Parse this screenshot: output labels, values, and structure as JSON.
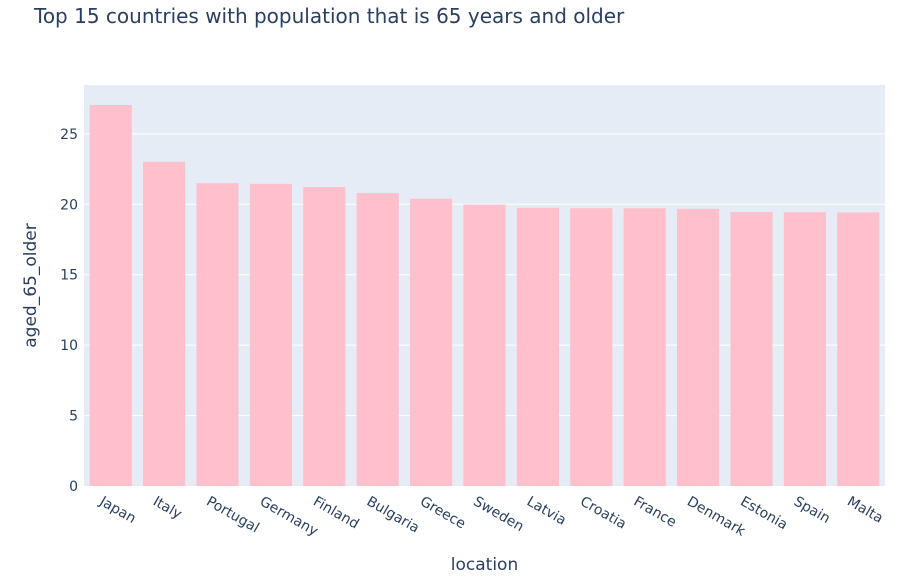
{
  "chart_data": {
    "type": "bar",
    "title": "Top 15 countries with population that is 65 years and older",
    "xlabel": "location",
    "ylabel": "aged_65_older",
    "categories": [
      "Japan",
      "Italy",
      "Portugal",
      "Germany",
      "Finland",
      "Bulgaria",
      "Greece",
      "Sweden",
      "Latvia",
      "Croatia",
      "France",
      "Denmark",
      "Estonia",
      "Spain",
      "Malta"
    ],
    "values": [
      27.049,
      23.021,
      21.502,
      21.453,
      21.228,
      20.801,
      20.396,
      19.985,
      19.754,
      19.724,
      19.718,
      19.677,
      19.452,
      19.436,
      19.426
    ],
    "ylim": [
      0,
      28.47
    ],
    "yticks": [
      0,
      5,
      10,
      15,
      20,
      25
    ],
    "grid": true,
    "legend": false,
    "colors": {
      "bar": "#ffc0cb",
      "plot_background": "#e5ecf6",
      "grid": "#ffffff",
      "text": "#2a3f5f"
    }
  }
}
